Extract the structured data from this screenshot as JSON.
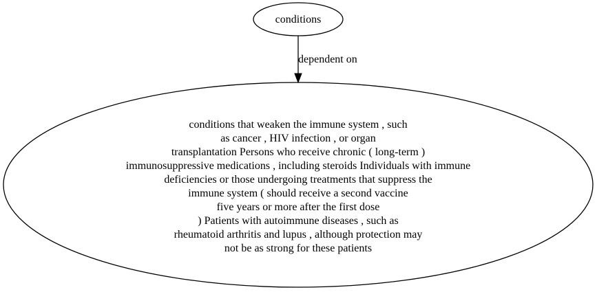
{
  "graph": {
    "nodes": [
      {
        "id": "conditions",
        "shape": "ellipse",
        "lines": [
          "conditions"
        ]
      },
      {
        "id": "immune-conditions",
        "shape": "ellipse",
        "lines": [
          "conditions that weaken the immune system , such",
          "as cancer , HIV infection , or organ",
          "transplantation Persons who receive chronic ( long-term )",
          "immunosuppressive medications , including steroids Individuals with immune",
          "deficiencies or those undergoing treatments that suppress the",
          "immune system ( should receive a second vaccine",
          "five years or more after the first dose",
          ") Patients with autoimmune diseases , such as",
          "rheumatoid arthritis and lupus , although protection may",
          "not be as strong for these patients"
        ]
      }
    ],
    "edges": [
      {
        "from": "conditions",
        "to": "immune-conditions",
        "label": "dependent on"
      }
    ]
  },
  "colors": {
    "stroke": "#000000",
    "background": "#ffffff",
    "text": "#000000"
  }
}
